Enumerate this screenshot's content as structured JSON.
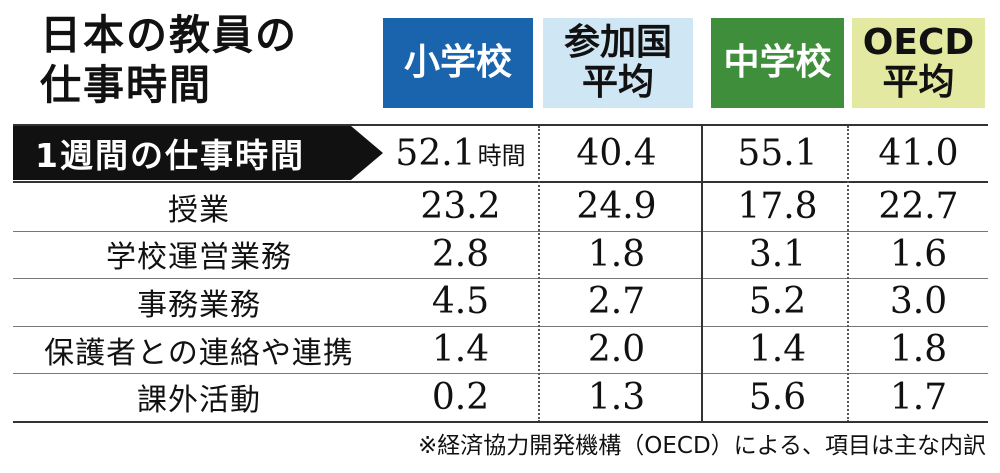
{
  "chart_data": {
    "type": "table",
    "title": [
      "日本の教員の",
      "仕事時間"
    ],
    "columns": [
      {
        "label": [
          "小学校"
        ]
      },
      {
        "label": [
          "参加国",
          "平均"
        ]
      },
      {
        "label": [
          "中学校"
        ]
      },
      {
        "label": [
          "OECD",
          "平均"
        ]
      }
    ],
    "total_row": {
      "label": "1週間の仕事時間",
      "unit": "時間",
      "values": [
        "52.1",
        "40.4",
        "55.1",
        "41.0"
      ]
    },
    "rows": [
      {
        "label": "授業",
        "values": [
          "23.2",
          "24.9",
          "17.8",
          "22.7"
        ]
      },
      {
        "label": "学校運営業務",
        "values": [
          "2.8",
          "1.8",
          "3.1",
          "1.6"
        ]
      },
      {
        "label": "事務業務",
        "values": [
          "4.5",
          "2.7",
          "5.2",
          "3.0"
        ]
      },
      {
        "label": "保護者との連絡や連携",
        "values": [
          "1.4",
          "2.0",
          "1.4",
          "1.8"
        ]
      },
      {
        "label": "課外活動",
        "values": [
          "0.2",
          "1.3",
          "5.6",
          "1.7"
        ]
      }
    ],
    "footnote": "※経済協力開発機構（OECD）による、項目は主な内訳"
  },
  "colors": {
    "elementary": "#1a63ad",
    "participant_avg": "#cfe6f4",
    "junior_high": "#3f8e3b",
    "oecd_avg": "#e4e9a2"
  }
}
